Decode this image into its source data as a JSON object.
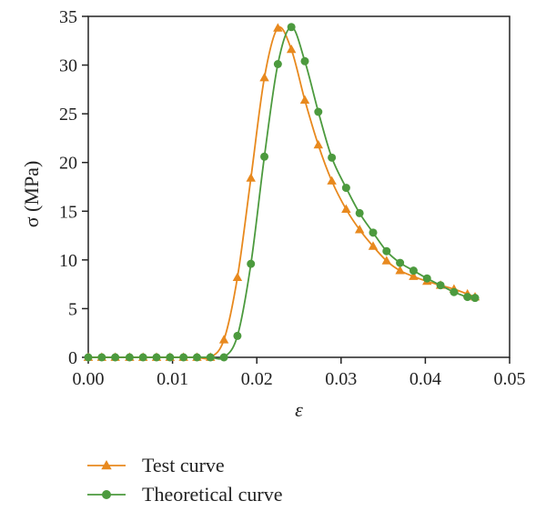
{
  "chart_data": {
    "type": "line",
    "xlabel": "ε",
    "ylabel": "σ (MPa)",
    "xlim": [
      0.0,
      0.05
    ],
    "ylim": [
      0,
      35
    ],
    "xticks": [
      "0.00",
      "0.01",
      "0.02",
      "0.03",
      "0.04",
      "0.05"
    ],
    "yticks": [
      "0",
      "5",
      "10",
      "15",
      "20",
      "25",
      "30",
      "35"
    ],
    "grid": false,
    "legend_position": "bottom",
    "series": [
      {
        "name": "Test curve",
        "color": "#e8891e",
        "marker": "triangle",
        "x": [
          0.0,
          0.0016,
          0.0032,
          0.0049,
          0.0065,
          0.0081,
          0.0097,
          0.0113,
          0.0129,
          0.0145,
          0.0161,
          0.0177,
          0.0193,
          0.0209,
          0.0225,
          0.0241,
          0.0257,
          0.0273,
          0.0289,
          0.0306,
          0.0322,
          0.0338,
          0.0354,
          0.037,
          0.0386,
          0.0402,
          0.0418,
          0.0434,
          0.045,
          0.0459
        ],
        "y": [
          0,
          0,
          0,
          0,
          0,
          0,
          0,
          0,
          0,
          0,
          1.8,
          8.2,
          18.4,
          28.7,
          33.8,
          31.6,
          26.4,
          21.8,
          18.1,
          15.2,
          13.1,
          11.4,
          9.9,
          8.9,
          8.3,
          7.8,
          7.4,
          7.0,
          6.5,
          6.2
        ]
      },
      {
        "name": "Theoretical curve",
        "color": "#4c9a3e",
        "marker": "circle",
        "x": [
          0.0,
          0.0016,
          0.0032,
          0.0049,
          0.0065,
          0.0081,
          0.0097,
          0.0113,
          0.0129,
          0.0145,
          0.0161,
          0.0177,
          0.0193,
          0.0209,
          0.0225,
          0.0241,
          0.0257,
          0.0273,
          0.0289,
          0.0306,
          0.0322,
          0.0338,
          0.0354,
          0.037,
          0.0386,
          0.0402,
          0.0418,
          0.0434,
          0.045,
          0.0459
        ],
        "y": [
          0,
          0,
          0,
          0,
          0,
          0,
          0,
          0,
          0,
          0,
          0,
          2.2,
          9.6,
          20.6,
          30.1,
          33.9,
          30.4,
          25.2,
          20.5,
          17.4,
          14.8,
          12.8,
          10.9,
          9.7,
          8.9,
          8.1,
          7.4,
          6.7,
          6.2,
          6.1
        ]
      }
    ]
  }
}
